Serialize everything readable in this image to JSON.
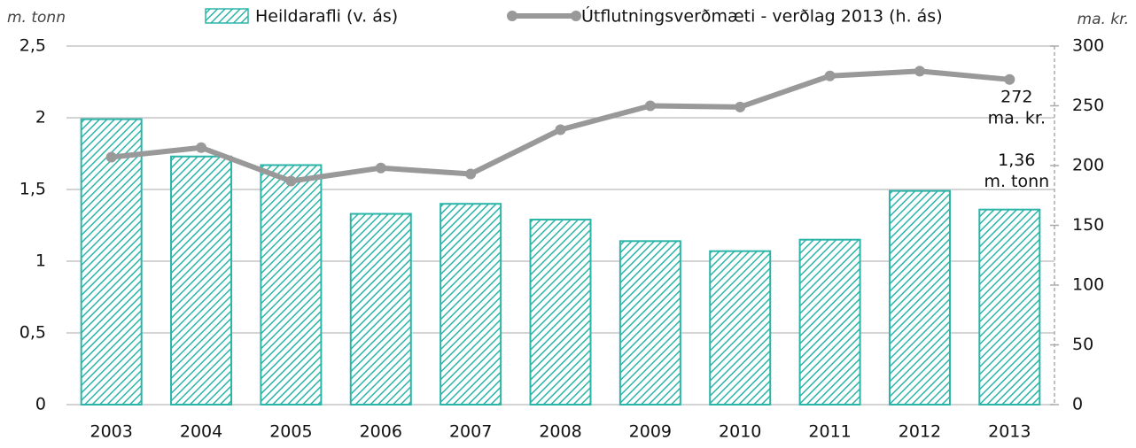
{
  "chart_data": {
    "type": "bar_line",
    "y_axis_label": "m. tonn",
    "y2_axis_label": "ma. kr.",
    "categories": [
      "2003",
      "2004",
      "2005",
      "2006",
      "2007",
      "2008",
      "2009",
      "2010",
      "2011",
      "2012",
      "2013"
    ],
    "series": [
      {
        "name": "Heildarafli (v. ás)",
        "type": "bar",
        "color": "#2bb5a8",
        "axis": "y",
        "values": [
          1.99,
          1.73,
          1.67,
          1.33,
          1.4,
          1.29,
          1.14,
          1.07,
          1.15,
          1.49,
          1.36
        ]
      },
      {
        "name": "Útflutningsverðmæti - verðlag 2013 (h. ás)",
        "type": "line",
        "color": "#999999",
        "axis": "y2",
        "values": [
          207,
          215,
          187,
          198,
          193,
          230,
          250,
          249,
          275,
          279,
          272
        ]
      }
    ],
    "annotations": [
      [
        "272",
        "ma. kr."
      ],
      [
        "1,36",
        "m. tonn"
      ]
    ],
    "ylim": [
      0,
      2.5
    ],
    "yticks": [
      0,
      {
        "value": 0.5,
        "label": "0,5"
      },
      1,
      {
        "value": 1.5,
        "label": "1,5"
      },
      2,
      {
        "value": 2.5,
        "label": "2,5"
      }
    ],
    "y2lim": [
      0,
      300
    ],
    "y2ticks": [
      0,
      50,
      100,
      150,
      200,
      250,
      300
    ],
    "grid": true
  }
}
